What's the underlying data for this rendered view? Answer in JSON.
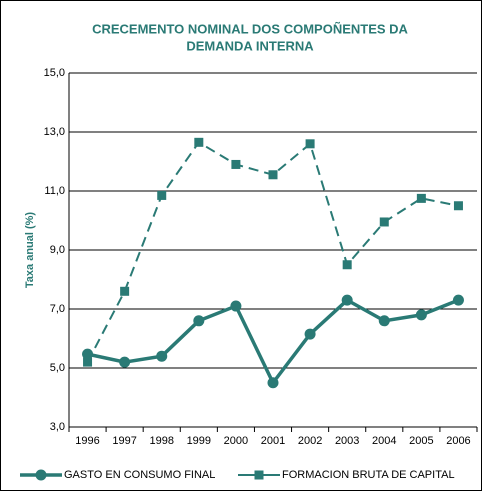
{
  "chart_data": {
    "type": "line",
    "title": [
      "CRECEMENTO NOMINAL DOS COMPOÑENTES DA",
      "DEMANDA INTERNA"
    ],
    "y_label": "Taxa anual (%)",
    "categories": [
      "1996",
      "1997",
      "1998",
      "1999",
      "2000",
      "2001",
      "2002",
      "2003",
      "2004",
      "2005",
      "2006"
    ],
    "series": [
      {
        "name": "GASTO EN CONSUMO FINAL",
        "color": "#2a7a75",
        "line_style": "solid",
        "marker": "circle",
        "values": [
          5.47,
          5.2,
          5.4,
          6.6,
          7.1,
          4.5,
          6.15,
          7.3,
          6.6,
          6.8,
          7.3
        ]
      },
      {
        "name": "FORMACION BRUTA DE CAPITAL",
        "color": "#2a7a75",
        "line_style": "dashed",
        "marker": "square",
        "values": [
          5.2,
          7.6,
          10.85,
          12.65,
          11.9,
          11.55,
          12.6,
          8.5,
          9.95,
          10.75,
          10.5
        ]
      }
    ],
    "ylim": [
      3,
      15
    ],
    "yticks": [
      {
        "value": 3,
        "label": "3,0"
      },
      {
        "value": 5,
        "label": "5,0"
      },
      {
        "value": 7,
        "label": "7,0"
      },
      {
        "value": 9,
        "label": "9,0"
      },
      {
        "value": 11,
        "label": "11,0"
      },
      {
        "value": 13,
        "label": "13,0"
      },
      {
        "value": 15,
        "label": "15,0"
      }
    ],
    "grid": true,
    "legend": "bottom"
  }
}
